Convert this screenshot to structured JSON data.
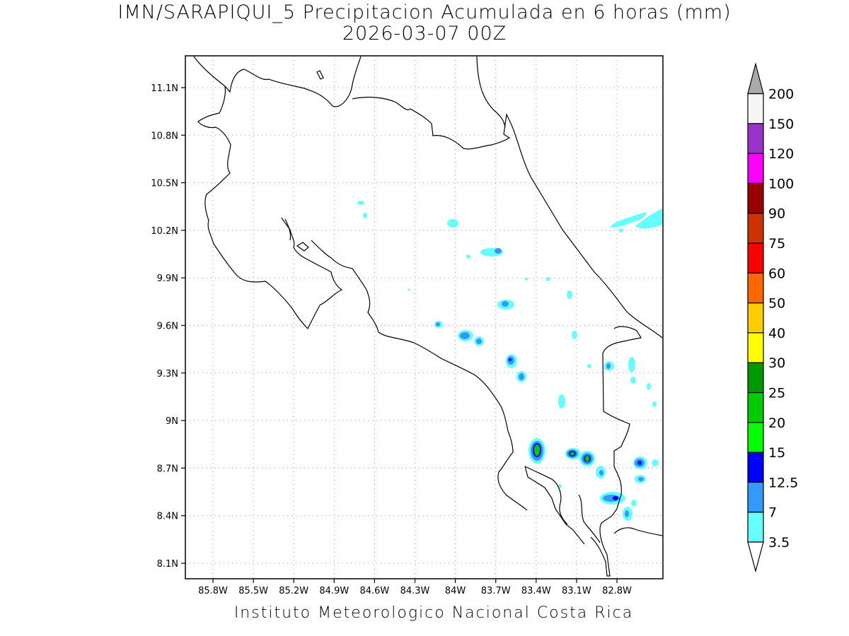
{
  "title": {
    "line1": "IMN/SARAPIQUI_5 Precipitacion Acumulada en 6 horas (mm)",
    "line2": "2026-03-07 00Z"
  },
  "credit": "Instituto Meteorologico Nacional Costa Rica",
  "map": {
    "lon_ticks": [
      "85.8W",
      "85.5W",
      "85.2W",
      "84.9W",
      "84.6W",
      "84.3W",
      "84W",
      "83.7W",
      "83.4W",
      "83.1W",
      "82.8W"
    ],
    "lat_ticks": [
      "11.1N",
      "10.8N",
      "10.5N",
      "10.2N",
      "9.9N",
      "9.6N",
      "9.3N",
      "9N",
      "8.7N",
      "8.4N",
      "8.1N"
    ],
    "grid": "dotted"
  },
  "colorbar": {
    "labels": [
      "3.5",
      "7",
      "12.5",
      "15",
      "20",
      "25",
      "30",
      "40",
      "50",
      "60",
      "75",
      "90",
      "100",
      "120",
      "150",
      "200"
    ],
    "colors": [
      "#ffffff",
      "#66ffff",
      "#3399ff",
      "#0000ff",
      "#00ff00",
      "#00cc00",
      "#009900",
      "#ffff00",
      "#ffcc00",
      "#ff6600",
      "#ff0000",
      "#cc3300",
      "#990000",
      "#ff00ff",
      "#9933cc",
      "#f5f5f5",
      "#aaaaaa"
    ]
  }
}
